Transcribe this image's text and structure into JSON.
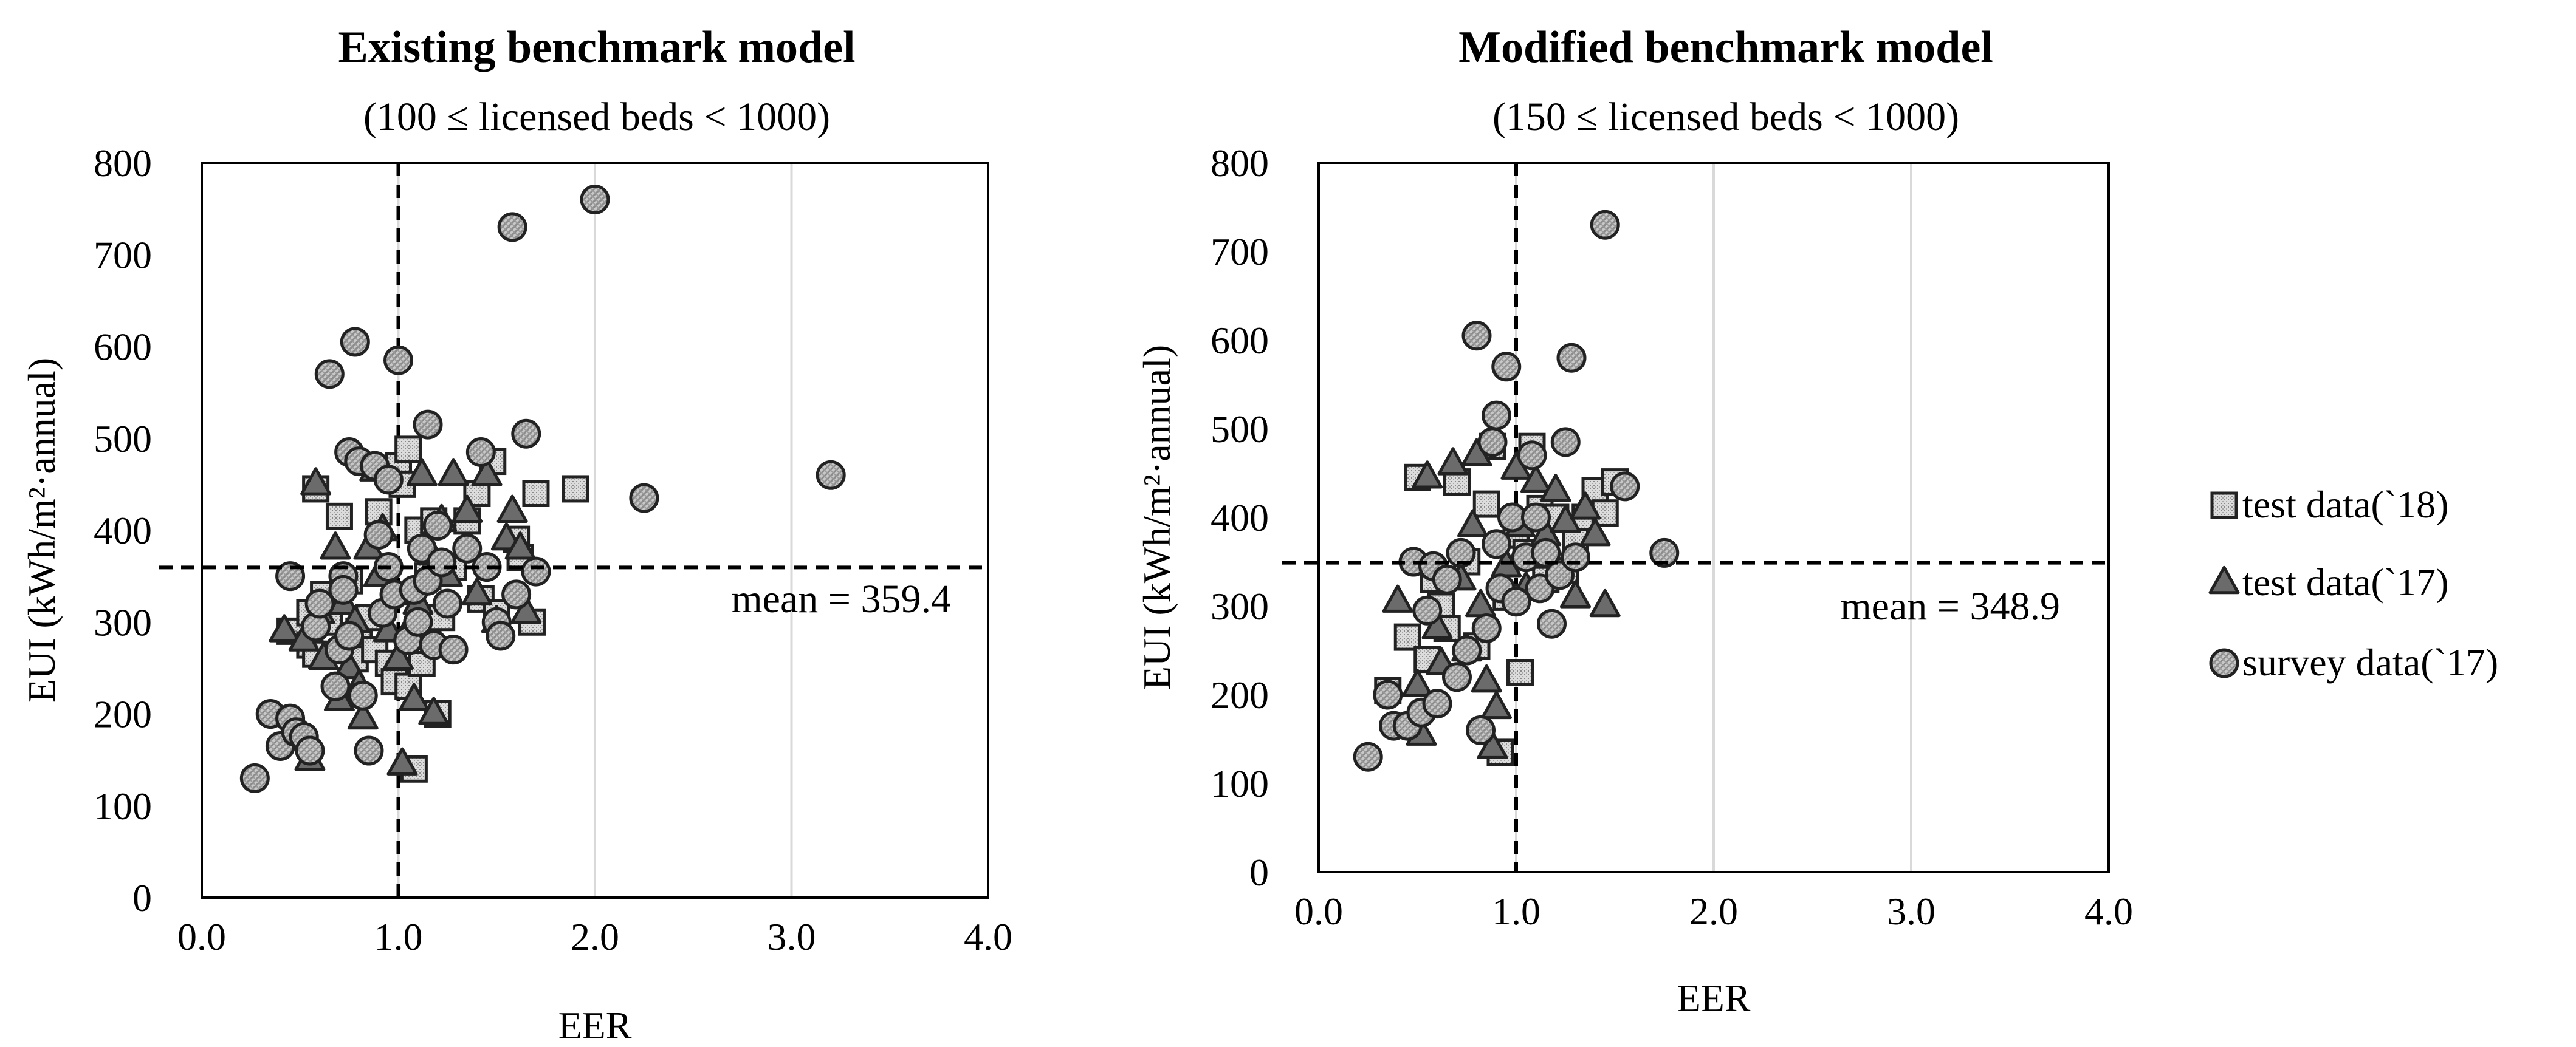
{
  "chart_data": [
    {
      "type": "scatter",
      "title": "Existing benchmark model",
      "subtitle": "(100 ≤ licensed beds < 1000)",
      "xlabel": "EER",
      "ylabel": "EUI (kWh/m²·annual)",
      "xlim": [
        0,
        4
      ],
      "ylim": [
        0,
        800
      ],
      "xticks": [
        "0.0",
        "1.0",
        "2.0",
        "3.0",
        "4.0"
      ],
      "yticks": [
        "0",
        "100",
        "200",
        "300",
        "400",
        "500",
        "600",
        "700",
        "800"
      ],
      "grid": true,
      "vline_x": 1.0,
      "mean_value": 359.4,
      "mean_label": "mean = 359.4",
      "series": [
        {
          "name": "test data(`18)",
          "marker": "square",
          "points": [
            [
              0.45,
              290
            ],
            [
              0.55,
              310
            ],
            [
              0.55,
              275
            ],
            [
              0.58,
              265
            ],
            [
              0.58,
              445
            ],
            [
              0.62,
              330
            ],
            [
              0.65,
              300
            ],
            [
              0.7,
              415
            ],
            [
              0.75,
              345
            ],
            [
              0.78,
              260
            ],
            [
              0.8,
              290
            ],
            [
              0.85,
              305
            ],
            [
              0.88,
              270
            ],
            [
              0.9,
              420
            ],
            [
              0.95,
              255
            ],
            [
              0.98,
              235
            ],
            [
              1.0,
              470
            ],
            [
              1.02,
              450
            ],
            [
              1.05,
              488
            ],
            [
              1.05,
              230
            ],
            [
              1.08,
              140
            ],
            [
              1.1,
              400
            ],
            [
              1.12,
              255
            ],
            [
              1.15,
              350
            ],
            [
              1.15,
              280
            ],
            [
              1.18,
              410
            ],
            [
              1.2,
              200
            ],
            [
              1.22,
              305
            ],
            [
              1.28,
              360
            ],
            [
              1.35,
              410
            ],
            [
              1.4,
              440
            ],
            [
              1.42,
              325
            ],
            [
              1.48,
              475
            ],
            [
              1.5,
              310
            ],
            [
              1.6,
              390
            ],
            [
              1.62,
              370
            ],
            [
              1.68,
              300
            ],
            [
              1.7,
              440
            ],
            [
              1.9,
              445
            ]
          ]
        },
        {
          "name": "test data(`17)",
          "marker": "triangle",
          "points": [
            [
              0.42,
              290
            ],
            [
              0.52,
              280
            ],
            [
              0.55,
              150
            ],
            [
              0.58,
              450
            ],
            [
              0.6,
              310
            ],
            [
              0.62,
              260
            ],
            [
              0.68,
              380
            ],
            [
              0.7,
              215
            ],
            [
              0.72,
              320
            ],
            [
              0.75,
              250
            ],
            [
              0.78,
              300
            ],
            [
              0.8,
              230
            ],
            [
              0.82,
              195
            ],
            [
              0.85,
              380
            ],
            [
              0.88,
              465
            ],
            [
              0.9,
              350
            ],
            [
              0.92,
              400
            ],
            [
              0.95,
              290
            ],
            [
              0.98,
              330
            ],
            [
              1.0,
              260
            ],
            [
              1.02,
              145
            ],
            [
              1.05,
              290
            ],
            [
              1.08,
              215
            ],
            [
              1.1,
              320
            ],
            [
              1.12,
              460
            ],
            [
              1.15,
              380
            ],
            [
              1.18,
              200
            ],
            [
              1.22,
              410
            ],
            [
              1.25,
              350
            ],
            [
              1.28,
              460
            ],
            [
              1.35,
              420
            ],
            [
              1.4,
              330
            ],
            [
              1.45,
              460
            ],
            [
              1.5,
              300
            ],
            [
              1.55,
              390
            ],
            [
              1.58,
              420
            ],
            [
              1.62,
              380
            ],
            [
              1.65,
              310
            ]
          ]
        },
        {
          "name": "survey data(`17)",
          "marker": "circle",
          "points": [
            [
              0.27,
              130
            ],
            [
              0.35,
              200
            ],
            [
              0.4,
              165
            ],
            [
              0.45,
              350
            ],
            [
              0.45,
              195
            ],
            [
              0.48,
              180
            ],
            [
              0.52,
              175
            ],
            [
              0.55,
              160
            ],
            [
              0.58,
              295
            ],
            [
              0.6,
              320
            ],
            [
              0.65,
              570
            ],
            [
              0.68,
              230
            ],
            [
              0.7,
              270
            ],
            [
              0.72,
              350
            ],
            [
              0.72,
              335
            ],
            [
              0.75,
              285
            ],
            [
              0.75,
              485
            ],
            [
              0.78,
              605
            ],
            [
              0.8,
              475
            ],
            [
              0.82,
              220
            ],
            [
              0.85,
              160
            ],
            [
              0.88,
              470
            ],
            [
              0.9,
              395
            ],
            [
              0.92,
              310
            ],
            [
              0.95,
              455
            ],
            [
              0.95,
              360
            ],
            [
              0.98,
              330
            ],
            [
              1.0,
              585
            ],
            [
              1.05,
              280
            ],
            [
              1.08,
              335
            ],
            [
              1.1,
              300
            ],
            [
              1.12,
              380
            ],
            [
              1.15,
              515
            ],
            [
              1.15,
              345
            ],
            [
              1.18,
              275
            ],
            [
              1.2,
              405
            ],
            [
              1.22,
              365
            ],
            [
              1.25,
              320
            ],
            [
              1.28,
              270
            ],
            [
              1.35,
              380
            ],
            [
              1.42,
              485
            ],
            [
              1.45,
              360
            ],
            [
              1.5,
              300
            ],
            [
              1.52,
              285
            ],
            [
              1.58,
              730
            ],
            [
              1.6,
              330
            ],
            [
              1.65,
              505
            ],
            [
              1.7,
              355
            ],
            [
              2.0,
              760
            ],
            [
              2.25,
              435
            ],
            [
              3.2,
              460
            ]
          ]
        }
      ]
    },
    {
      "type": "scatter",
      "title": "Modified benchmark model",
      "subtitle": "(150 ≤ licensed beds < 1000)",
      "xlabel": "EER",
      "ylabel": "EUI (kWh/m²·annual)",
      "xlim": [
        0,
        4
      ],
      "ylim": [
        0,
        800
      ],
      "xticks": [
        "0.0",
        "1.0",
        "2.0",
        "3.0",
        "4.0"
      ],
      "yticks": [
        "0",
        "100",
        "200",
        "300",
        "400",
        "500",
        "600",
        "700",
        "800"
      ],
      "grid": true,
      "vline_x": 1.0,
      "mean_value": 348.9,
      "mean_label": "mean = 348.9",
      "series": [
        {
          "name": "test data(`18)",
          "marker": "square",
          "points": [
            [
              0.35,
              205
            ],
            [
              0.45,
              265
            ],
            [
              0.5,
              445
            ],
            [
              0.55,
              240
            ],
            [
              0.58,
              330
            ],
            [
              0.62,
              300
            ],
            [
              0.65,
              275
            ],
            [
              0.7,
              440
            ],
            [
              0.75,
              350
            ],
            [
              0.8,
              255
            ],
            [
              0.85,
              415
            ],
            [
              0.88,
              480
            ],
            [
              0.92,
              135
            ],
            [
              0.95,
              310
            ],
            [
              1.0,
              380
            ],
            [
              1.02,
              225
            ],
            [
              1.05,
              360
            ],
            [
              1.08,
              480
            ],
            [
              1.12,
              410
            ],
            [
              1.15,
              330
            ],
            [
              1.2,
              400
            ],
            [
              1.25,
              340
            ],
            [
              1.3,
              375
            ],
            [
              1.35,
              400
            ],
            [
              1.4,
              430
            ],
            [
              1.45,
              405
            ],
            [
              1.5,
              440
            ]
          ]
        },
        {
          "name": "test data(`17)",
          "marker": "triangle",
          "points": [
            [
              0.4,
              305
            ],
            [
              0.5,
              210
            ],
            [
              0.52,
              155
            ],
            [
              0.55,
              445
            ],
            [
              0.6,
              275
            ],
            [
              0.62,
              235
            ],
            [
              0.68,
              460
            ],
            [
              0.72,
              330
            ],
            [
              0.75,
              250
            ],
            [
              0.78,
              390
            ],
            [
              0.8,
              470
            ],
            [
              0.82,
              300
            ],
            [
              0.85,
              215
            ],
            [
              0.88,
              140
            ],
            [
              0.9,
              185
            ],
            [
              0.95,
              345
            ],
            [
              1.0,
              455
            ],
            [
              1.02,
              390
            ],
            [
              1.05,
              320
            ],
            [
              1.1,
              440
            ],
            [
              1.15,
              380
            ],
            [
              1.2,
              430
            ],
            [
              1.25,
              395
            ],
            [
              1.3,
              310
            ],
            [
              1.35,
              410
            ],
            [
              1.4,
              380
            ],
            [
              1.45,
              300
            ]
          ]
        },
        {
          "name": "survey data(`17)",
          "marker": "circle",
          "points": [
            [
              0.25,
              130
            ],
            [
              0.35,
              200
            ],
            [
              0.38,
              165
            ],
            [
              0.45,
              165
            ],
            [
              0.48,
              350
            ],
            [
              0.52,
              180
            ],
            [
              0.55,
              295
            ],
            [
              0.58,
              345
            ],
            [
              0.6,
              190
            ],
            [
              0.65,
              330
            ],
            [
              0.7,
              220
            ],
            [
              0.72,
              360
            ],
            [
              0.75,
              250
            ],
            [
              0.8,
              605
            ],
            [
              0.82,
              160
            ],
            [
              0.85,
              275
            ],
            [
              0.88,
              485
            ],
            [
              0.9,
              370
            ],
            [
              0.9,
              515
            ],
            [
              0.92,
              320
            ],
            [
              0.95,
              570
            ],
            [
              0.98,
              400
            ],
            [
              1.0,
              305
            ],
            [
              1.05,
              355
            ],
            [
              1.08,
              470
            ],
            [
              1.1,
              400
            ],
            [
              1.12,
              320
            ],
            [
              1.15,
              360
            ],
            [
              1.18,
              280
            ],
            [
              1.22,
              335
            ],
            [
              1.25,
              485
            ],
            [
              1.28,
              580
            ],
            [
              1.3,
              355
            ],
            [
              1.45,
              730
            ],
            [
              1.55,
              435
            ],
            [
              1.75,
              360
            ]
          ]
        }
      ]
    }
  ],
  "legend": {
    "items": [
      "test data(`18)",
      "test data(`17)",
      "survey data(`17)"
    ]
  }
}
